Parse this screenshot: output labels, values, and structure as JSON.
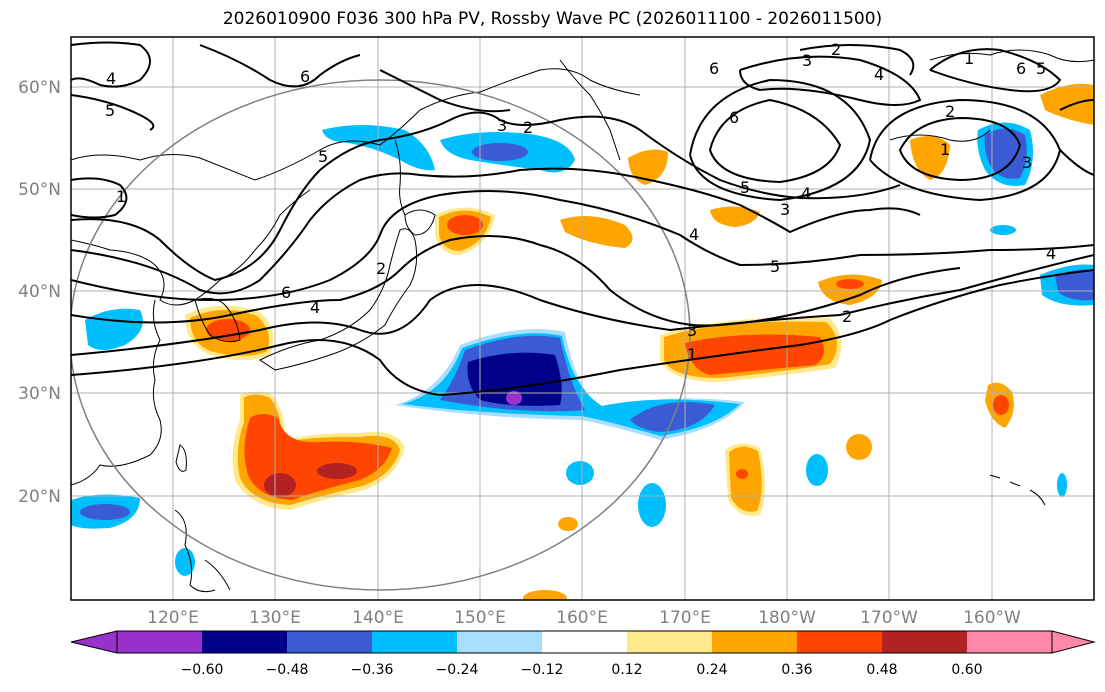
{
  "title": "2026010900 F036 300 hPa PV, Rossby Wave PC (2026011100 - 2026011500)",
  "latitude_labels": [
    "60°N",
    "50°N",
    "40°N",
    "30°N",
    "20°N"
  ],
  "longitude_labels": [
    "120°E",
    "130°E",
    "140°E",
    "150°E",
    "160°E",
    "170°E",
    "180°W",
    "170°W",
    "160°W"
  ],
  "contour_labels": [
    "4",
    "5",
    "1",
    "6",
    "6",
    "4",
    "5",
    "3",
    "2",
    "6",
    "3",
    "2",
    "6",
    "5",
    "4",
    "3",
    "2",
    "1",
    "1",
    "6",
    "5",
    "4",
    "3",
    "4",
    "5",
    "3",
    "2",
    "1",
    "2",
    "4"
  ],
  "colorbar": {
    "ticks": [
      "−0.60",
      "−0.48",
      "−0.36",
      "−0.24",
      "−0.12",
      "0.12",
      "0.24",
      "0.36",
      "0.48",
      "0.60"
    ],
    "colors": [
      "#9932cc",
      "#00008b",
      "#3a5bd4",
      "#00bfff",
      "#aadeff",
      "#ffffff",
      "#ffe98a",
      "#ffa500",
      "#ff4500",
      "#b22222",
      "#ff88aa"
    ]
  },
  "anomaly_colors": {
    "neg_strong": "#00008b",
    "neg_mid": "#3a5bd4",
    "neg_weak": "#00bfff",
    "neg_faint": "#aadeff",
    "pos_faint": "#ffe98a",
    "pos_weak": "#ffa500",
    "pos_mid": "#ff4500",
    "pos_strong": "#b22222",
    "neg_extreme": "#9932cc"
  }
}
